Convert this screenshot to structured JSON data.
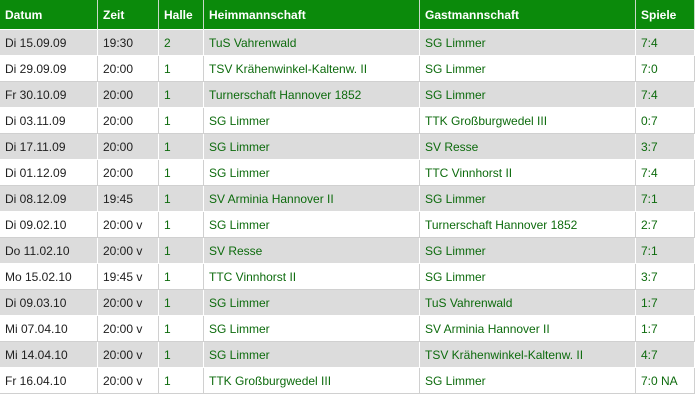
{
  "headers": [
    "Datum",
    "Zeit",
    "Halle",
    "Heimmannschaft",
    "Gastmannschaft",
    "Spiele"
  ],
  "rows": [
    {
      "datum": "Di 15.09.09",
      "zeit": "19:30",
      "halle": "2",
      "heim": "TuS Vahrenwald",
      "gast": "SG Limmer",
      "spiele": "7:4",
      "highlight": "gast"
    },
    {
      "datum": "Di 29.09.09",
      "zeit": "20:00",
      "halle": "1",
      "heim": "TSV Krähenwinkel-Kaltenw. II",
      "gast": "SG Limmer",
      "spiele": "7:0",
      "highlight": "gast"
    },
    {
      "datum": "Fr 30.10.09",
      "zeit": "20:00",
      "halle": "1",
      "heim": "Turnerschaft Hannover 1852",
      "gast": "SG Limmer",
      "spiele": "7:4",
      "highlight": "gast"
    },
    {
      "datum": "Di 03.11.09",
      "zeit": "20:00",
      "halle": "1",
      "heim": "SG Limmer",
      "gast": "TTK Großburgwedel III",
      "spiele": "0:7",
      "highlight": "heim"
    },
    {
      "datum": "Di 17.11.09",
      "zeit": "20:00",
      "halle": "1",
      "heim": "SG Limmer",
      "gast": "SV Resse",
      "spiele": "3:7",
      "highlight": "heim"
    },
    {
      "datum": "Di 01.12.09",
      "zeit": "20:00",
      "halle": "1",
      "heim": "SG Limmer",
      "gast": "TTC Vinnhorst II",
      "spiele": "7:4",
      "highlight": "heim"
    },
    {
      "datum": "Di 08.12.09",
      "zeit": "19:45",
      "halle": "1",
      "heim": "SV Arminia Hannover II",
      "gast": "SG Limmer",
      "spiele": "7:1",
      "highlight": "gast"
    },
    {
      "datum": "Di 09.02.10",
      "zeit": "20:00 v",
      "halle": "1",
      "heim": "SG Limmer",
      "gast": "Turnerschaft Hannover 1852",
      "spiele": "2:7",
      "highlight": "heim"
    },
    {
      "datum": "Do 11.02.10",
      "zeit": "20:00 v",
      "halle": "1",
      "heim": "SV Resse",
      "gast": "SG Limmer",
      "spiele": "7:1",
      "highlight": "gast"
    },
    {
      "datum": "Mo 15.02.10",
      "zeit": "19:45 v",
      "halle": "1",
      "heim": "TTC Vinnhorst II",
      "gast": "SG Limmer",
      "spiele": "3:7",
      "highlight": "gast"
    },
    {
      "datum": "Di 09.03.10",
      "zeit": "20:00 v",
      "halle": "1",
      "heim": "SG Limmer",
      "gast": "TuS Vahrenwald",
      "spiele": "1:7",
      "highlight": "heim"
    },
    {
      "datum": "Mi 07.04.10",
      "zeit": "20:00 v",
      "halle": "1",
      "heim": "SG Limmer",
      "gast": "SV Arminia Hannover II",
      "spiele": "1:7",
      "highlight": "heim"
    },
    {
      "datum": "Mi 14.04.10",
      "zeit": "20:00 v",
      "halle": "1",
      "heim": "SG Limmer",
      "gast": "TSV Krähenwinkel-Kaltenw. II",
      "spiele": "4:7",
      "highlight": "heim"
    },
    {
      "datum": "Fr 16.04.10",
      "zeit": "20:00 v",
      "halle": "1",
      "heim": "TTK Großburgwedel III",
      "gast": "SG Limmer",
      "spiele": "7:0 NA",
      "highlight": "gast"
    }
  ],
  "colors": {
    "header_bg": "#0b8a0b",
    "header_text": "#ffffff",
    "row_alt": "#dcdcdc",
    "green_text": "#0d6b0d"
  }
}
